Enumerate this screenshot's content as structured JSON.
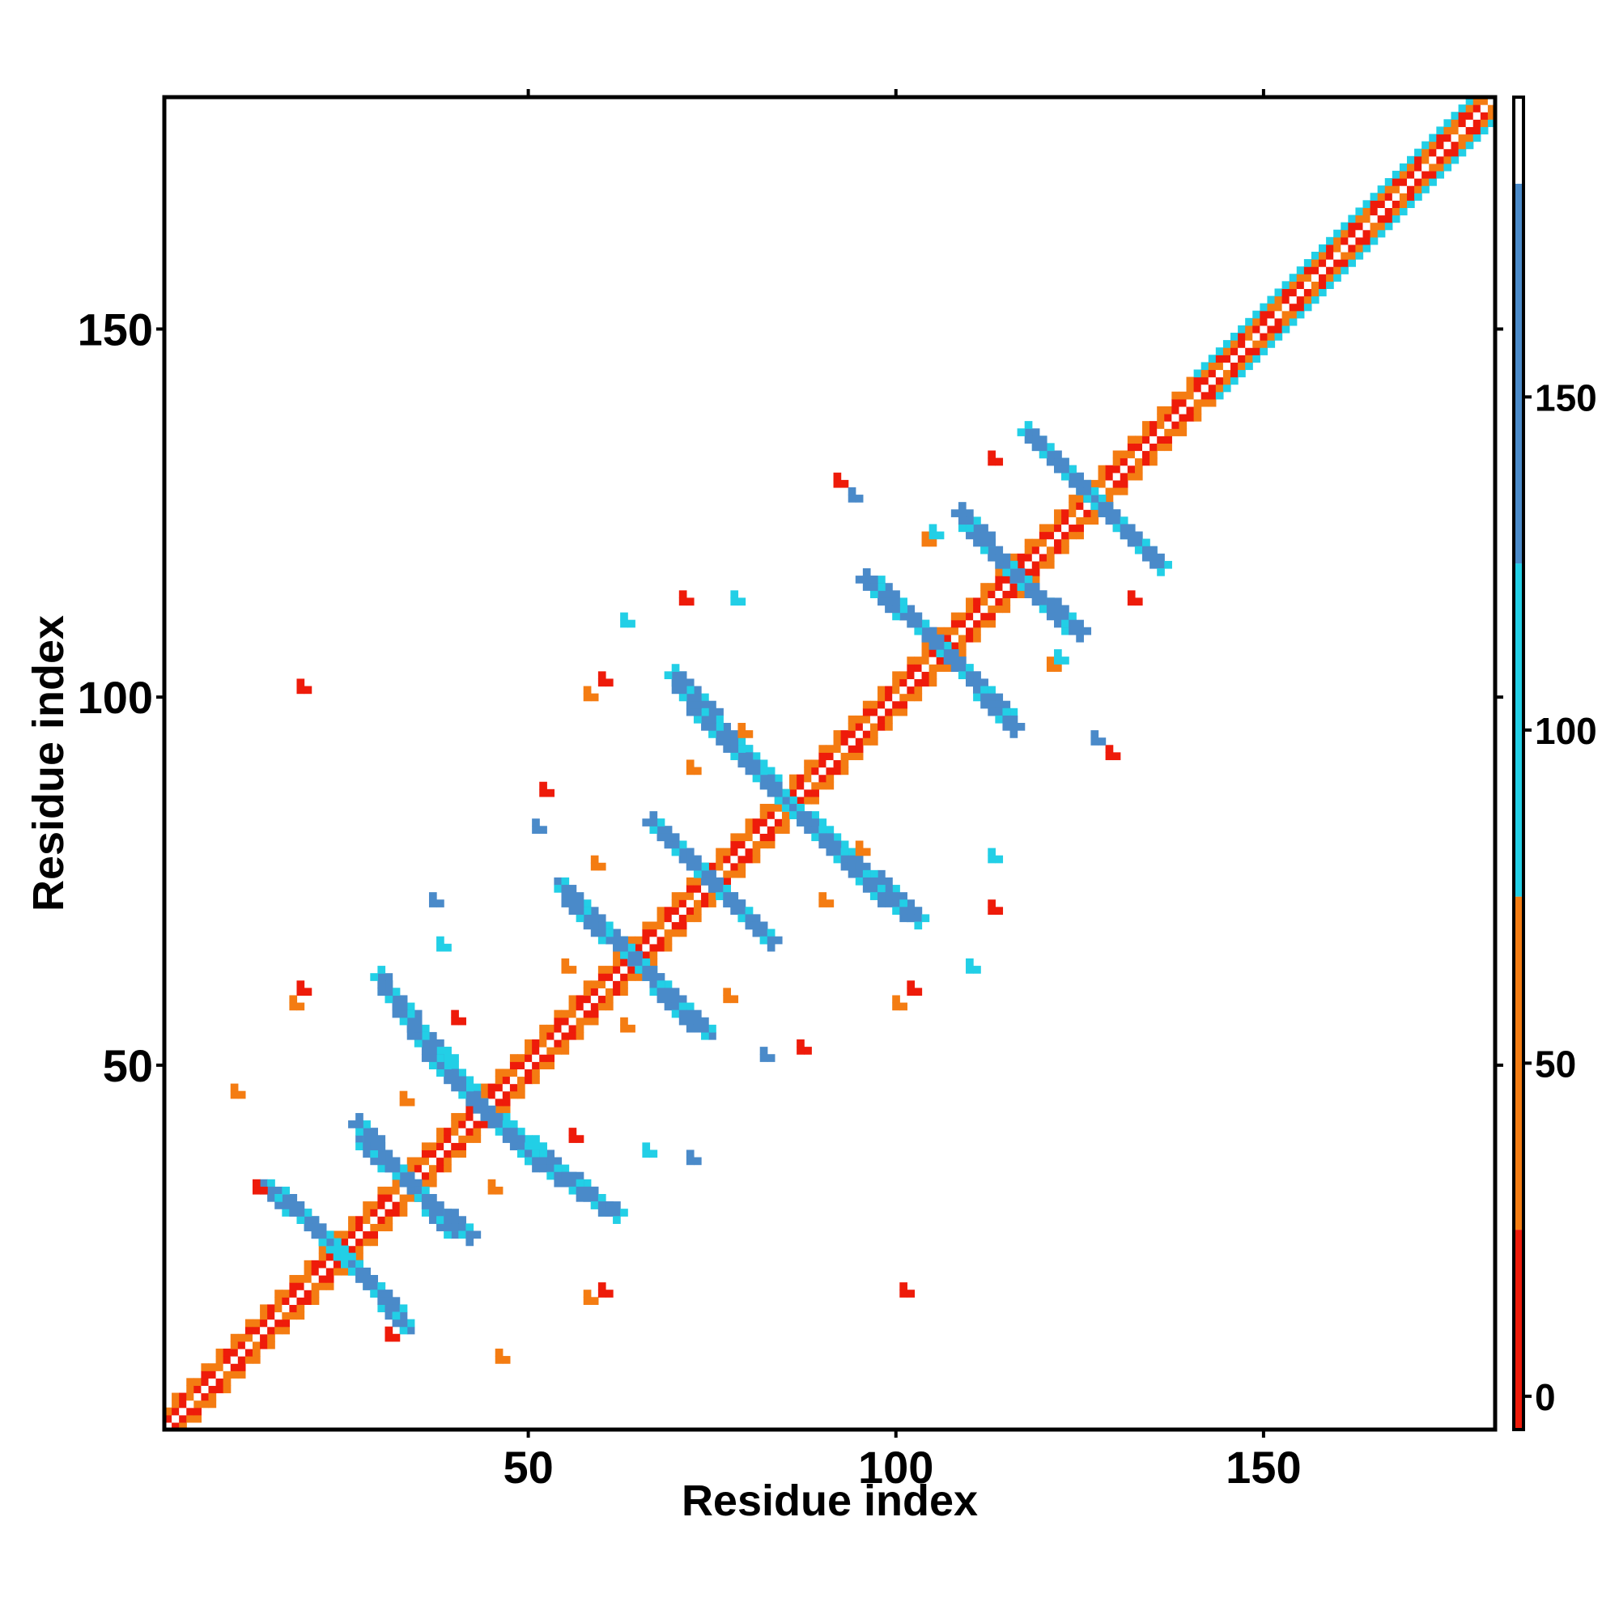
{
  "chart_data": {
    "type": "heatmap",
    "title": "",
    "xlabel": "Residue index",
    "ylabel": "Residue index",
    "xlim": [
      1,
      181
    ],
    "ylim": [
      1,
      181
    ],
    "x_ticks": [
      50,
      100,
      150
    ],
    "y_ticks": [
      50,
      100,
      150
    ],
    "x_tick_labels": [
      "50",
      "100",
      "150"
    ],
    "y_tick_labels": [
      "50",
      "100",
      "150"
    ],
    "colorbar": {
      "ticks": [
        0,
        50,
        100,
        150
      ],
      "tick_labels": [
        "0",
        "50",
        "100",
        "150"
      ],
      "range": [
        -5,
        195
      ],
      "bands": [
        {
          "from": -5,
          "to": 25,
          "color": "#ee1b0a"
        },
        {
          "from": 25,
          "to": 75,
          "color": "#f47c12"
        },
        {
          "from": 75,
          "to": 125,
          "color": "#22cfe6"
        },
        {
          "from": 125,
          "to": 182,
          "color": "#4a8ac9"
        },
        {
          "from": 182,
          "to": 195,
          "color": "#ffffff"
        }
      ]
    },
    "color_categories": {
      "red": "#ee1b0a",
      "orange": "#f47c12",
      "cyan": "#22cfe6",
      "steelblue": "#4a8ac9"
    },
    "diagonal": {
      "from": 1,
      "to": 181
    },
    "off_diagonal_segments": [
      {
        "x1": 14,
        "y1": 34,
        "x2": 22,
        "y2": 27,
        "color": "steelblue"
      },
      {
        "x1": 22,
        "y1": 27,
        "x2": 26,
        "y2": 23,
        "color": "cyan"
      },
      {
        "x1": 26,
        "y1": 23,
        "x2": 32,
        "y2": 17,
        "color": "steelblue"
      },
      {
        "x1": 27,
        "y1": 40,
        "x2": 35,
        "y2": 33,
        "color": "steelblue"
      },
      {
        "x1": 35,
        "y1": 33,
        "x2": 42,
        "y2": 27,
        "color": "steelblue"
      },
      {
        "x1": 30,
        "y1": 61,
        "x2": 38,
        "y2": 52,
        "color": "steelblue"
      },
      {
        "x1": 38,
        "y1": 52,
        "x2": 43,
        "y2": 45,
        "color": "cyan"
      },
      {
        "x1": 43,
        "y1": 45,
        "x2": 50,
        "y2": 38,
        "color": "steelblue"
      },
      {
        "x1": 50,
        "y1": 38,
        "x2": 62,
        "y2": 30,
        "color": "steelblue"
      },
      {
        "x1": 54,
        "y1": 75,
        "x2": 62,
        "y2": 67,
        "color": "steelblue"
      },
      {
        "x1": 62,
        "y1": 67,
        "x2": 72,
        "y2": 56,
        "color": "steelblue"
      },
      {
        "x1": 67,
        "y1": 83,
        "x2": 76,
        "y2": 74,
        "color": "steelblue"
      },
      {
        "x1": 76,
        "y1": 74,
        "x2": 83,
        "y2": 67,
        "color": "steelblue"
      },
      {
        "x1": 70,
        "y1": 103,
        "x2": 79,
        "y2": 93,
        "color": "steelblue"
      },
      {
        "x1": 79,
        "y1": 93,
        "x2": 86,
        "y2": 85,
        "color": "cyan"
      },
      {
        "x1": 86,
        "y1": 85,
        "x2": 97,
        "y2": 74,
        "color": "steelblue"
      },
      {
        "x1": 97,
        "y1": 74,
        "x2": 103,
        "y2": 70,
        "color": "steelblue"
      },
      {
        "x1": 97,
        "y1": 116,
        "x2": 106,
        "y2": 107,
        "color": "steelblue"
      },
      {
        "x1": 106,
        "y1": 107,
        "x2": 116,
        "y2": 96,
        "color": "steelblue"
      },
      {
        "x1": 109,
        "y1": 124,
        "x2": 117,
        "y2": 116,
        "color": "steelblue"
      },
      {
        "x1": 117,
        "y1": 116,
        "x2": 125,
        "y2": 109,
        "color": "steelblue"
      },
      {
        "x1": 119,
        "y1": 135,
        "x2": 127,
        "y2": 127,
        "color": "steelblue"
      },
      {
        "x1": 127,
        "y1": 127,
        "x2": 136,
        "y2": 118,
        "color": "steelblue"
      }
    ],
    "off_diagonal_patches": [
      {
        "x": 19,
        "y": 60,
        "color": "red"
      },
      {
        "x": 18,
        "y": 58,
        "color": "orange"
      },
      {
        "x": 10,
        "y": 46,
        "color": "orange"
      },
      {
        "x": 13,
        "y": 33,
        "color": "red"
      },
      {
        "x": 31,
        "y": 13,
        "color": "red"
      },
      {
        "x": 46,
        "y": 10,
        "color": "orange"
      },
      {
        "x": 58,
        "y": 18,
        "color": "orange"
      },
      {
        "x": 60,
        "y": 19,
        "color": "red"
      },
      {
        "x": 60,
        "y": 102,
        "color": "red"
      },
      {
        "x": 58,
        "y": 100,
        "color": "orange"
      },
      {
        "x": 102,
        "y": 60,
        "color": "red"
      },
      {
        "x": 100,
        "y": 58,
        "color": "orange"
      },
      {
        "x": 92,
        "y": 129,
        "color": "red"
      },
      {
        "x": 129,
        "y": 92,
        "color": "red"
      },
      {
        "x": 19,
        "y": 101,
        "color": "red"
      },
      {
        "x": 101,
        "y": 19,
        "color": "red"
      },
      {
        "x": 52,
        "y": 87,
        "color": "red"
      },
      {
        "x": 87,
        "y": 52,
        "color": "red"
      },
      {
        "x": 71,
        "y": 113,
        "color": "red"
      },
      {
        "x": 113,
        "y": 71,
        "color": "red"
      },
      {
        "x": 113,
        "y": 132,
        "color": "red"
      },
      {
        "x": 132,
        "y": 113,
        "color": "red"
      },
      {
        "x": 33,
        "y": 45,
        "color": "orange"
      },
      {
        "x": 45,
        "y": 33,
        "color": "orange"
      },
      {
        "x": 55,
        "y": 63,
        "color": "orange"
      },
      {
        "x": 63,
        "y": 55,
        "color": "orange"
      },
      {
        "x": 79,
        "y": 95,
        "color": "orange"
      },
      {
        "x": 95,
        "y": 79,
        "color": "orange"
      },
      {
        "x": 104,
        "y": 121,
        "color": "orange"
      },
      {
        "x": 121,
        "y": 104,
        "color": "orange"
      },
      {
        "x": 94,
        "y": 127,
        "color": "steelblue"
      },
      {
        "x": 127,
        "y": 94,
        "color": "steelblue"
      },
      {
        "x": 51,
        "y": 82,
        "color": "steelblue"
      },
      {
        "x": 82,
        "y": 51,
        "color": "steelblue"
      },
      {
        "x": 37,
        "y": 72,
        "color": "steelblue"
      },
      {
        "x": 72,
        "y": 37,
        "color": "steelblue"
      },
      {
        "x": 63,
        "y": 110,
        "color": "cyan"
      },
      {
        "x": 110,
        "y": 63,
        "color": "cyan"
      },
      {
        "x": 105,
        "y": 122,
        "color": "cyan"
      },
      {
        "x": 122,
        "y": 105,
        "color": "cyan"
      },
      {
        "x": 66,
        "y": 38,
        "color": "cyan"
      },
      {
        "x": 38,
        "y": 66,
        "color": "cyan"
      },
      {
        "x": 56,
        "y": 40,
        "color": "red"
      },
      {
        "x": 40,
        "y": 56,
        "color": "red"
      },
      {
        "x": 77,
        "y": 59,
        "color": "orange"
      },
      {
        "x": 59,
        "y": 77,
        "color": "orange"
      },
      {
        "x": 90,
        "y": 72,
        "color": "orange"
      },
      {
        "x": 72,
        "y": 90,
        "color": "orange"
      },
      {
        "x": 113,
        "y": 78,
        "color": "cyan"
      },
      {
        "x": 78,
        "y": 113,
        "color": "cyan"
      }
    ]
  }
}
